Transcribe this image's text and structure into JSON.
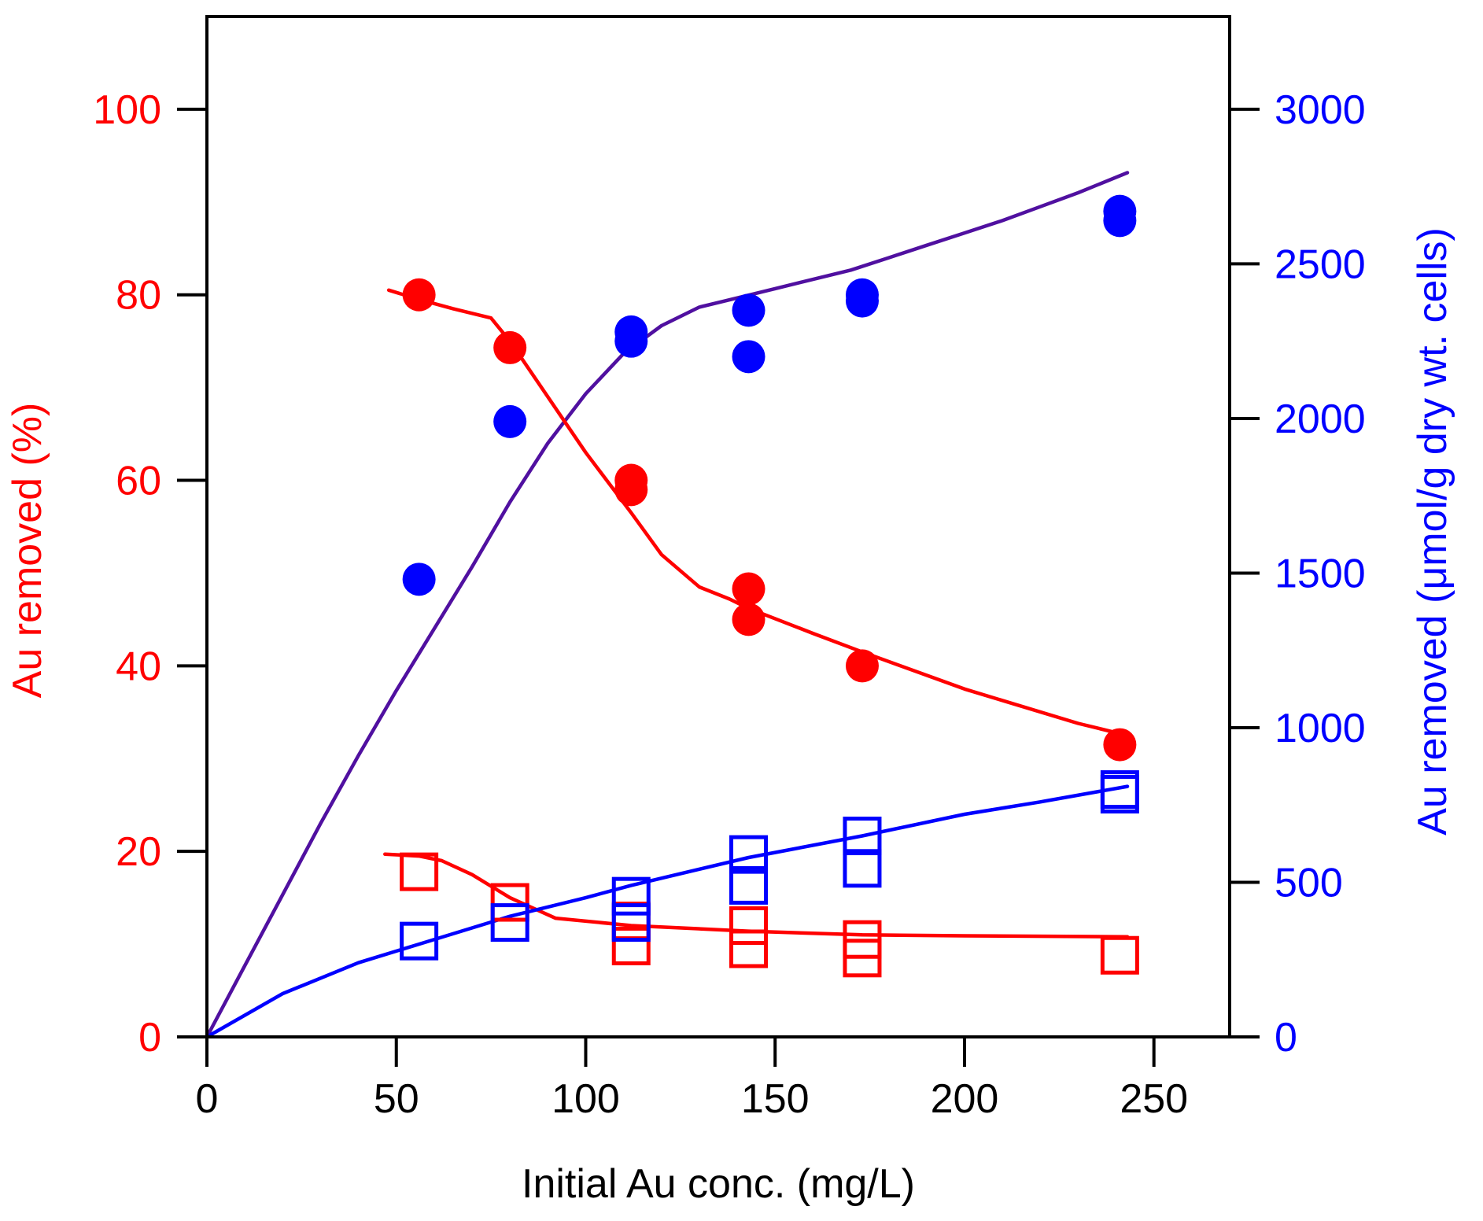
{
  "chart_data": {
    "type": "scatter",
    "title": "",
    "xlabel": "Initial Au conc. (mg/L)",
    "ylabel_left": "Au removed (%)",
    "ylabel_right": "Au removed (μmol/g dry wt. cells)",
    "xlim": [
      0,
      270
    ],
    "ylim_left": [
      0,
      110
    ],
    "ylim_right": [
      0,
      3300
    ],
    "x_ticks": [
      0,
      50,
      100,
      150,
      200,
      250
    ],
    "y_left_ticks": [
      0,
      20,
      40,
      60,
      80,
      100
    ],
    "y_right_ticks": [
      0,
      500,
      1000,
      1500,
      2000,
      2500,
      3000
    ],
    "colors": {
      "left_axis": "#ff0000",
      "right_axis": "#0000ff",
      "purple_fit": "#5010a0",
      "frame": "#000000"
    },
    "series": [
      {
        "name": "Au removed (%) filled circles",
        "axis": "left",
        "marker": "filled-circle",
        "color": "#ff0000",
        "x": [
          56,
          80,
          112,
          112,
          143,
          143,
          173,
          241
        ],
        "y": [
          80,
          74.3,
          60,
          59,
          48.3,
          45,
          40,
          31.5
        ]
      },
      {
        "name": "Au removed (μmol/g) filled circles",
        "axis": "right",
        "marker": "filled-circle",
        "color": "#0000ff",
        "x": [
          56,
          80,
          112,
          112,
          143,
          143,
          173,
          173,
          241,
          241
        ],
        "y": [
          1480,
          1990,
          2280,
          2250,
          2350,
          2200,
          2400,
          2380,
          2670,
          2640
        ]
      },
      {
        "name": "Au removed (%) open squares",
        "axis": "left",
        "marker": "open-square",
        "color": "#ff0000",
        "x": [
          56,
          80,
          112,
          112,
          143,
          143,
          173,
          173,
          241
        ],
        "y": [
          17.8,
          14.5,
          12.5,
          9.8,
          12,
          9.5,
          10.5,
          8.5,
          8.8
        ]
      },
      {
        "name": "Au removed (μmol/g) open squares",
        "axis": "right",
        "marker": "open-square",
        "color": "#0000ff",
        "x": [
          56,
          80,
          112,
          112,
          143,
          143,
          173,
          173,
          241,
          241
        ],
        "y": [
          310,
          370,
          455,
          370,
          590,
          490,
          650,
          545,
          800,
          785
        ]
      }
    ],
    "fit_lines": [
      {
        "name": "purple fit (μmol/g, circles)",
        "axis": "right",
        "color": "#5010a0",
        "x": [
          0,
          10,
          20,
          30,
          40,
          50,
          60,
          70,
          80,
          90,
          100,
          110,
          120,
          130,
          140,
          150,
          160,
          170,
          180,
          190,
          200,
          210,
          220,
          230,
          243
        ],
        "y": [
          0,
          230,
          460,
          690,
          910,
          1120,
          1320,
          1520,
          1730,
          1920,
          2080,
          2210,
          2300,
          2360,
          2390,
          2420,
          2450,
          2480,
          2520,
          2560,
          2600,
          2640,
          2685,
          2730,
          2795
        ]
      },
      {
        "name": "red fit (%, circles)",
        "axis": "left",
        "color": "#ff0000",
        "x": [
          48,
          56,
          65,
          75,
          80,
          90,
          100,
          112,
          120,
          130,
          138,
          143,
          160,
          173,
          200,
          230,
          243
        ],
        "y": [
          80.5,
          79.5,
          78.5,
          77.5,
          75,
          69,
          63,
          56.5,
          52,
          48.5,
          47.2,
          46.2,
          43.5,
          41.5,
          37.5,
          33.8,
          32.5
        ]
      },
      {
        "name": "red fit (%, squares)",
        "axis": "left",
        "color": "#ff0000",
        "x": [
          47,
          56,
          62,
          70,
          80,
          92,
          112,
          143,
          173,
          200,
          243
        ],
        "y": [
          19.7,
          19.5,
          19,
          17.5,
          15,
          12.8,
          12,
          11.4,
          11,
          10.9,
          10.8
        ]
      },
      {
        "name": "blue fit (μmol/g, squares)",
        "axis": "right",
        "color": "#0000ff",
        "x": [
          0,
          20,
          40,
          56,
          80,
          100,
          112,
          143,
          173,
          200,
          220,
          243
        ],
        "y": [
          0,
          140,
          240,
          300,
          390,
          450,
          490,
          580,
          650,
          720,
          760,
          810
        ]
      }
    ]
  }
}
